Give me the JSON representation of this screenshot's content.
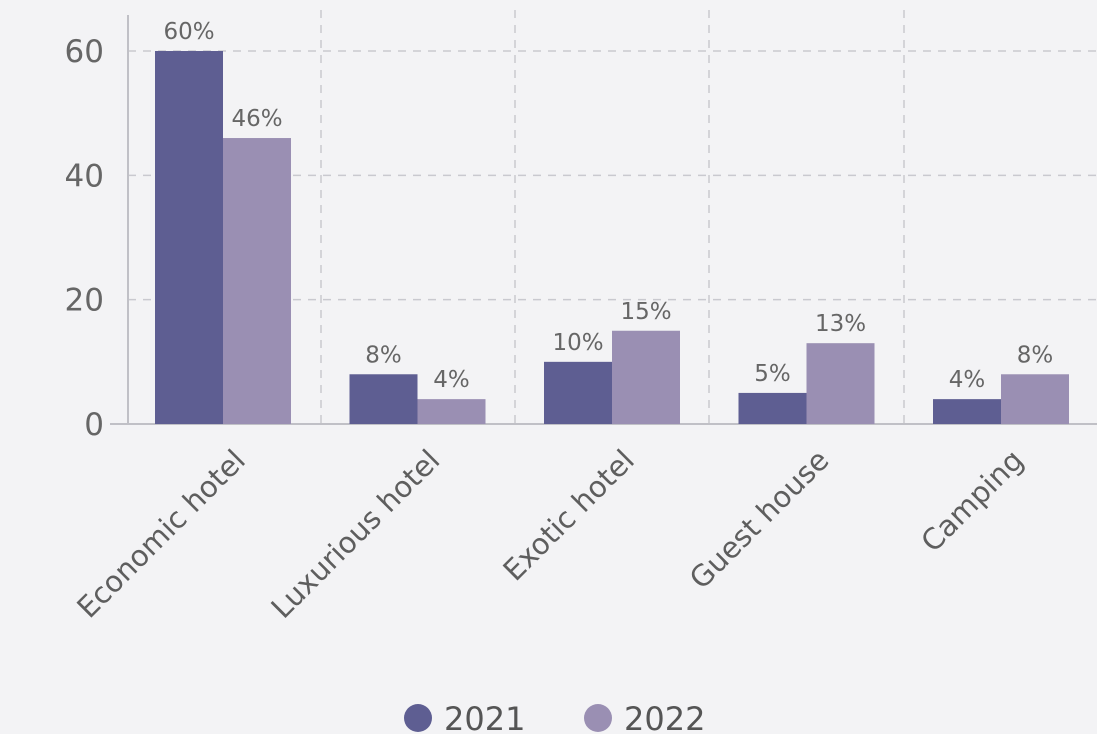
{
  "chart_data": {
    "type": "bar",
    "categories": [
      "Economic hotel",
      "Luxurious hotel",
      "Exotic hotel",
      "Guest house",
      "Camping"
    ],
    "series": [
      {
        "name": "2021",
        "values": [
          60,
          8,
          10,
          5,
          4
        ],
        "labels": [
          "60%",
          "8%",
          "10%",
          "5%",
          "4%"
        ]
      },
      {
        "name": "2022",
        "values": [
          46,
          4,
          15,
          13,
          8
        ],
        "labels": [
          "46%",
          "4%",
          "15%",
          "13%",
          "8%"
        ]
      }
    ],
    "yticks": [
      "0",
      "20",
      "40",
      "60"
    ],
    "ylim": [
      0,
      60
    ],
    "grid": true,
    "legend": "bottom",
    "colors": [
      "#5e5e92",
      "#9a8fb3"
    ]
  }
}
